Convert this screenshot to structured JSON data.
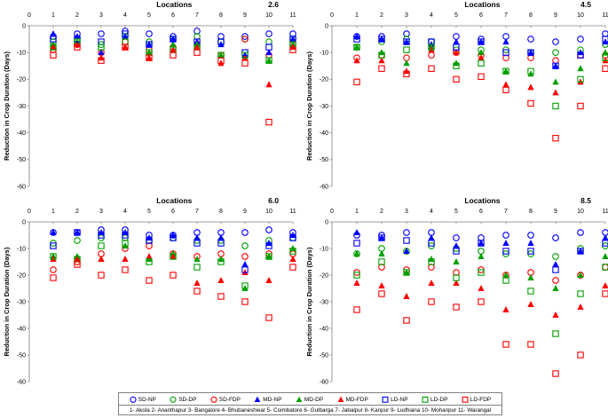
{
  "chart_data": [
    {
      "type": "scatter",
      "title": "2.6",
      "xlabel": "Locations",
      "ylabel": "Reduction in Crop Duration (Days)",
      "xlim": [
        0,
        11
      ],
      "ylim": [
        -60,
        0
      ],
      "x": [
        1,
        2,
        3,
        4,
        5,
        6,
        7,
        8,
        9,
        10,
        11
      ],
      "series": [
        {
          "name": "SD-NP",
          "values": [
            -4,
            -3,
            -3,
            -2,
            -3,
            -4,
            -2,
            -4,
            -4,
            -3,
            -3
          ]
        },
        {
          "name": "SD-DP",
          "values": [
            -6,
            -5,
            -7,
            -4,
            -6,
            -5,
            -4,
            -6,
            -5,
            -6,
            -5
          ]
        },
        {
          "name": "SD-FDP",
          "values": [
            -9,
            -7,
            -10,
            -6,
            -9,
            -8,
            -7,
            -11,
            -5,
            -11,
            -7
          ]
        },
        {
          "name": "MD-NP",
          "values": [
            -3,
            -4,
            -10,
            -4,
            -7,
            -5,
            -6,
            -7,
            -11,
            -10,
            -5
          ]
        },
        {
          "name": "MD-DP",
          "values": [
            -7,
            -6,
            -12,
            -8,
            -10,
            -7,
            -7,
            -11,
            -12,
            -13,
            -7
          ]
        },
        {
          "name": "MD-FDP",
          "values": [
            -8,
            -7,
            -12,
            -8,
            -12,
            -9,
            -8,
            -14,
            -12,
            -22,
            -8
          ]
        },
        {
          "name": "LD-NP",
          "values": [
            -5,
            -5,
            -6,
            -3,
            -7,
            -5,
            -6,
            -6,
            -10,
            -8,
            -5
          ]
        },
        {
          "name": "LD-DP",
          "values": [
            -8,
            -6,
            -8,
            -6,
            -10,
            -9,
            -8,
            -11,
            -11,
            -13,
            -7
          ]
        },
        {
          "name": "LD-FDP",
          "values": [
            -11,
            -8,
            -13,
            -8,
            -12,
            -11,
            -10,
            -13,
            -14,
            -36,
            -9
          ]
        }
      ]
    },
    {
      "type": "scatter",
      "title": "4.5",
      "xlabel": "Locations",
      "ylabel": "Reduction in Crop Duration (Days)",
      "xlim": [
        0,
        11
      ],
      "ylim": [
        -60,
        0
      ],
      "x": [
        1,
        2,
        3,
        4,
        5,
        6,
        7,
        8,
        9,
        10,
        11
      ],
      "series": [
        {
          "name": "SD-NP",
          "values": [
            -4,
            -4,
            -3,
            -6,
            -4,
            -5,
            -4,
            -5,
            -6,
            -5,
            -3
          ]
        },
        {
          "name": "SD-DP",
          "values": [
            -8,
            -6,
            -5,
            -6,
            -9,
            -9,
            -9,
            -10,
            -10,
            -9,
            -7
          ]
        },
        {
          "name": "SD-FDP",
          "values": [
            -12,
            -11,
            -12,
            -11,
            -10,
            -11,
            -12,
            -12,
            -13,
            -11,
            -11
          ]
        },
        {
          "name": "MD-NP",
          "values": [
            -4,
            -5,
            -6,
            -7,
            -6,
            -6,
            -6,
            -10,
            -15,
            -10,
            -6
          ]
        },
        {
          "name": "MD-DP",
          "values": [
            -8,
            -10,
            -14,
            -8,
            -14,
            -10,
            -17,
            -18,
            -21,
            -16,
            -10
          ]
        },
        {
          "name": "MD-FDP",
          "values": [
            -13,
            -13,
            -17,
            -9,
            -10,
            -12,
            -22,
            -23,
            -25,
            -21,
            -13
          ]
        },
        {
          "name": "LD-NP",
          "values": [
            -5,
            -5,
            -6,
            -6,
            -8,
            -6,
            -10,
            -10,
            -15,
            -11,
            -5
          ]
        },
        {
          "name": "LD-DP",
          "values": [
            -8,
            -11,
            -9,
            -8,
            -15,
            -14,
            -17,
            -17,
            -30,
            -20,
            -12
          ]
        },
        {
          "name": "LD-FDP",
          "values": [
            -21,
            -16,
            -18,
            -16,
            -20,
            -19,
            -24,
            -29,
            -42,
            -30,
            -16
          ]
        }
      ]
    },
    {
      "type": "scatter",
      "title": "6.0",
      "xlabel": "Locations",
      "ylabel": "Reduction in Crop Duration (Days)",
      "xlim": [
        0,
        11
      ],
      "ylim": [
        -60,
        0
      ],
      "x": [
        1,
        2,
        3,
        4,
        5,
        6,
        7,
        8,
        9,
        10,
        11
      ],
      "series": [
        {
          "name": "SD-NP",
          "values": [
            -4,
            -4,
            -3,
            -3,
            -5,
            -5,
            -4,
            -4,
            -4,
            -3,
            -4
          ]
        },
        {
          "name": "SD-DP",
          "values": [
            -8,
            -7,
            -6,
            -6,
            -7,
            -6,
            -7,
            -7,
            -9,
            -7,
            -6
          ]
        },
        {
          "name": "SD-FDP",
          "values": [
            -18,
            -15,
            -12,
            -10,
            -9,
            -12,
            -13,
            -12,
            -13,
            -12,
            -12
          ]
        },
        {
          "name": "MD-NP",
          "values": [
            -4,
            -4,
            -4,
            -4,
            -6,
            -5,
            -6,
            -6,
            -16,
            -8,
            -5
          ]
        },
        {
          "name": "MD-DP",
          "values": [
            -13,
            -13,
            -14,
            -9,
            -14,
            -12,
            -14,
            -14,
            -25,
            -13,
            -10
          ]
        },
        {
          "name": "MD-FDP",
          "values": [
            -14,
            -14,
            -14,
            -14,
            -13,
            -13,
            -23,
            -22,
            -19,
            -22,
            -14
          ]
        },
        {
          "name": "LD-NP",
          "values": [
            -9,
            -4,
            -5,
            -5,
            -7,
            -6,
            -8,
            -8,
            -18,
            -9,
            -6
          ]
        },
        {
          "name": "LD-DP",
          "values": [
            -13,
            -14,
            -9,
            -8,
            -15,
            -13,
            -17,
            -15,
            -24,
            -13,
            -11
          ]
        },
        {
          "name": "LD-FDP",
          "values": [
            -21,
            -16,
            -20,
            -18,
            -22,
            -20,
            -26,
            -28,
            -30,
            -36,
            -17
          ]
        }
      ]
    },
    {
      "type": "scatter",
      "title": "8.5",
      "xlabel": "Locations",
      "ylabel": "Reduction in Crop Duration (Days)",
      "xlim": [
        0,
        11
      ],
      "ylim": [
        -60,
        0
      ],
      "x": [
        1,
        2,
        3,
        4,
        5,
        6,
        7,
        8,
        9,
        10,
        11
      ],
      "series": [
        {
          "name": "SD-NP",
          "values": [
            -5,
            -5,
            -4,
            -4,
            -6,
            -6,
            -5,
            -5,
            -6,
            -4,
            -4
          ]
        },
        {
          "name": "SD-DP",
          "values": [
            -12,
            -10,
            -11,
            -9,
            -10,
            -11,
            -12,
            -12,
            -13,
            -10,
            -9
          ]
        },
        {
          "name": "SD-FDP",
          "values": [
            -19,
            -17,
            -18,
            -17,
            -19,
            -18,
            -20,
            -19,
            -22,
            -20,
            -17
          ]
        },
        {
          "name": "MD-NP",
          "values": [
            -4,
            -6,
            -11,
            -6,
            -9,
            -8,
            -8,
            -8,
            -16,
            -11,
            -6
          ]
        },
        {
          "name": "MD-DP",
          "values": [
            -12,
            -12,
            -19,
            -14,
            -15,
            -13,
            -20,
            -21,
            -25,
            -20,
            -13
          ]
        },
        {
          "name": "MD-FDP",
          "values": [
            -23,
            -24,
            -28,
            -23,
            -23,
            -25,
            -33,
            -31,
            -35,
            -32,
            -24
          ]
        },
        {
          "name": "LD-NP",
          "values": [
            -8,
            -6,
            -7,
            -8,
            -11,
            -8,
            -11,
            -11,
            -18,
            -11,
            -8
          ]
        },
        {
          "name": "LD-DP",
          "values": [
            -20,
            -15,
            -19,
            -15,
            -21,
            -19,
            -22,
            -26,
            -42,
            -27,
            -17
          ]
        },
        {
          "name": "LD-FDP",
          "values": [
            -33,
            -27,
            -37,
            -30,
            -32,
            -30,
            -46,
            -46,
            -57,
            -50,
            -27
          ]
        }
      ]
    }
  ],
  "series_styles": {
    "SD-NP": {
      "color": "#0000ff",
      "shape": "circle"
    },
    "SD-DP": {
      "color": "#00a000",
      "shape": "circle"
    },
    "SD-FDP": {
      "color": "#ff0000",
      "shape": "circle"
    },
    "MD-NP": {
      "color": "#0000ff",
      "shape": "triangle"
    },
    "MD-DP": {
      "color": "#00a000",
      "shape": "triangle"
    },
    "MD-FDP": {
      "color": "#ff0000",
      "shape": "triangle"
    },
    "LD-NP": {
      "color": "#0000ff",
      "shape": "square"
    },
    "LD-DP": {
      "color": "#00a000",
      "shape": "square"
    },
    "LD-FDP": {
      "color": "#ff0000",
      "shape": "square"
    }
  },
  "x_ticks": [
    0,
    1,
    2,
    3,
    4,
    5,
    6,
    7,
    8,
    9,
    10,
    11
  ],
  "y_ticks": [
    0,
    -10,
    -20,
    -30,
    -40,
    -50,
    -60
  ],
  "legend": {
    "items": [
      "SD-NP",
      "SD-DP",
      "SD-FDP",
      "MD-NP",
      "MD-DP",
      "MD-FDP",
      "LD-NP",
      "LD-DP",
      "LD-FDP"
    ],
    "location_key": "1- Akola 2- Ananthapur 3- Bangalore 4- Bhubaneshwar 5- Coimbatore 6- Gulbarga 7- Jabalpur 8- Kanpur 9- Ludhiana 10- Mohanpur 11- Warangal"
  }
}
